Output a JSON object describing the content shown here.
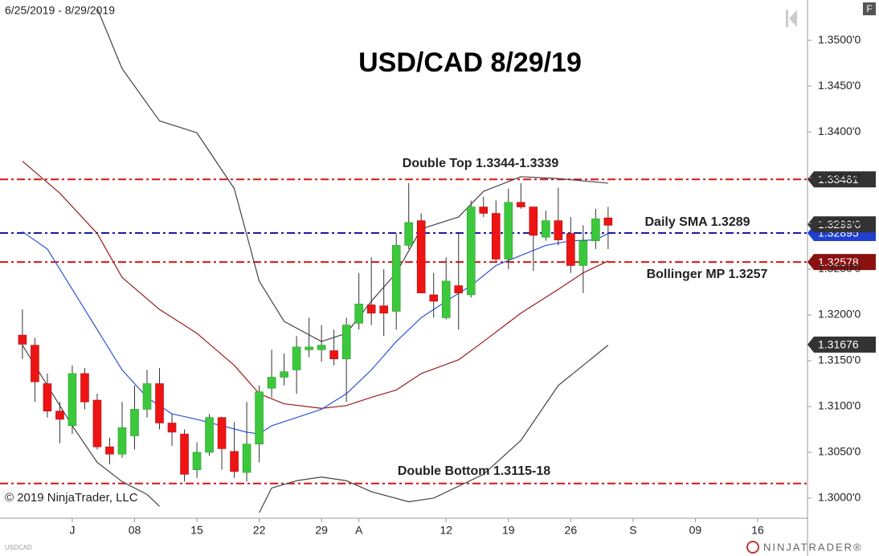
{
  "chart_data": {
    "type": "candlestick",
    "title": "USD/CAD 8/29/19",
    "subtitle": "6/25/2019 - 8/29/2019",
    "symbol": "USDCAD",
    "copyright": "© 2019 NinjaTrader, LLC",
    "brand": "NINJATRADER®",
    "corner_button": "F",
    "ylim": [
      1.2978,
      1.3544
    ],
    "yticks": [
      {
        "value": 1.3,
        "label": "1.3000'0"
      },
      {
        "value": 1.305,
        "label": "1.3050'0"
      },
      {
        "value": 1.31,
        "label": "1.3100'0"
      },
      {
        "value": 1.315,
        "label": "1.3150'0"
      },
      {
        "value": 1.32,
        "label": "1.3200'0"
      },
      {
        "value": 1.325,
        "label": "1.3250'0"
      },
      {
        "value": 1.33,
        "label": "1.3300'0"
      },
      {
        "value": 1.335,
        "label": "1.3350'0"
      },
      {
        "value": 1.34,
        "label": "1.3400'0"
      },
      {
        "value": 1.345,
        "label": "1.3450'0"
      },
      {
        "value": 1.35,
        "label": "1.3500'0"
      }
    ],
    "xlim": [
      -1.8,
      63
    ],
    "xticks": [
      {
        "value": 4,
        "label": "J"
      },
      {
        "value": 9,
        "label": "08"
      },
      {
        "value": 14,
        "label": "15"
      },
      {
        "value": 19,
        "label": "22"
      },
      {
        "value": 24,
        "label": "29"
      },
      {
        "value": 27,
        "label": "A"
      },
      {
        "value": 34,
        "label": "12"
      },
      {
        "value": 39,
        "label": "19"
      },
      {
        "value": 44,
        "label": "26"
      },
      {
        "value": 49,
        "label": "S"
      },
      {
        "value": 54,
        "label": "09"
      },
      {
        "value": 59,
        "label": "16"
      }
    ],
    "candles": {
      "up_color": "#3cc83c",
      "down_color": "#ee1414",
      "open": [
        1.3178,
        1.3167,
        1.3125,
        1.3095,
        1.3079,
        1.3136,
        1.3107,
        1.3056,
        1.3048,
        1.3068,
        1.3097,
        1.3125,
        1.3082,
        1.307,
        1.3031,
        1.305,
        1.3088,
        1.3051,
        1.3028,
        1.3059,
        1.312,
        1.3132,
        1.314,
        1.3162,
        1.3162,
        1.3161,
        1.3152,
        1.3191,
        1.3211,
        1.321,
        1.3204,
        1.3276,
        1.3303,
        1.3222,
        1.3197,
        1.3232,
        1.3222,
        1.3318,
        1.3311,
        1.3261,
        1.3323,
        1.3318,
        1.3285,
        1.3303,
        1.3289,
        1.3254,
        1.3281,
        1.3306
      ],
      "high": [
        1.3206,
        1.3175,
        1.3136,
        1.3105,
        1.3145,
        1.3142,
        1.3114,
        1.3066,
        1.3105,
        1.3123,
        1.314,
        1.3142,
        1.3092,
        1.3075,
        1.3061,
        1.3092,
        1.3089,
        1.3083,
        1.3105,
        1.3123,
        1.3162,
        1.3158,
        1.3177,
        1.3197,
        1.3189,
        1.3184,
        1.3197,
        1.3246,
        1.3263,
        1.325,
        1.3289,
        1.3344,
        1.3311,
        1.3246,
        1.3263,
        1.3289,
        1.3325,
        1.3329,
        1.3325,
        1.3338,
        1.3344,
        1.3318,
        1.3314,
        1.3339,
        1.3307,
        1.3298,
        1.3316,
        1.3318
      ],
      "low": [
        1.3152,
        1.3105,
        1.3088,
        1.306,
        1.307,
        1.3097,
        1.3053,
        1.3037,
        1.3044,
        1.3053,
        1.3088,
        1.3075,
        1.3057,
        1.3018,
        1.3022,
        1.3046,
        1.3031,
        1.3022,
        1.3018,
        1.3039,
        1.311,
        1.3123,
        1.3114,
        1.3154,
        1.3149,
        1.3145,
        1.3105,
        1.3184,
        1.3189,
        1.3177,
        1.3184,
        1.3272,
        1.3224,
        1.3197,
        1.3195,
        1.3184,
        1.3219,
        1.3307,
        1.3259,
        1.325,
        1.3316,
        1.3248,
        1.3281,
        1.3276,
        1.3246,
        1.3224,
        1.3272,
        1.3272
      ],
      "close": [
        1.3168,
        1.3127,
        1.3095,
        1.3086,
        1.3136,
        1.3105,
        1.3056,
        1.3048,
        1.3077,
        1.3097,
        1.3125,
        1.3082,
        1.3072,
        1.3026,
        1.305,
        1.3088,
        1.3054,
        1.3029,
        1.3059,
        1.3116,
        1.3132,
        1.3138,
        1.3165,
        1.3165,
        1.3167,
        1.3152,
        1.3189,
        1.3212,
        1.3202,
        1.3202,
        1.3276,
        1.3301,
        1.3224,
        1.3215,
        1.3237,
        1.3224,
        1.3318,
        1.3311,
        1.3261,
        1.3323,
        1.3318,
        1.3287,
        1.3303,
        1.3282,
        1.3254,
        1.3281,
        1.3305,
        1.3298
      ]
    },
    "lines": [
      {
        "color": "#444444",
        "x": [
          6,
          8,
          11,
          14,
          17,
          19,
          21,
          24,
          26,
          28,
          30,
          32,
          35,
          37,
          40,
          43,
          47
        ],
        "values": [
          1.3535,
          1.3469,
          1.3412,
          1.3399,
          1.3338,
          1.3237,
          1.3193,
          1.3171,
          1.318,
          1.3215,
          1.3246,
          1.3294,
          1.3307,
          1.3335,
          1.3351,
          1.3349,
          1.3344
        ]
      },
      {
        "color": "#444444",
        "x": [
          0,
          2,
          4,
          6,
          8,
          10,
          11,
          12,
          19,
          20,
          22,
          24,
          26,
          28,
          31,
          33,
          35,
          37,
          40,
          43,
          45,
          47
        ],
        "values": [
          1.3167,
          1.3123,
          1.3079,
          1.3039,
          1.3018,
          1.3004,
          1.2991,
          null,
          1.2984,
          1.3011,
          1.3019,
          1.3023,
          1.3019,
          1.3007,
          1.2996,
          1.3,
          1.3013,
          1.3026,
          1.3063,
          1.3123,
          1.3145,
          1.3167
        ]
      },
      {
        "color": "#9b1c1c",
        "x": [
          0,
          3,
          6,
          8,
          11,
          14,
          17,
          19,
          21,
          24,
          26,
          28,
          30,
          32,
          35,
          37,
          40,
          43,
          45,
          47
        ],
        "values": [
          1.3368,
          1.3333,
          1.3289,
          1.3241,
          1.3206,
          1.318,
          1.3145,
          1.3114,
          1.3103,
          1.3098,
          1.3101,
          1.311,
          1.3118,
          1.3136,
          1.3151,
          1.3171,
          1.3202,
          1.3228,
          1.3246,
          1.3259
        ]
      },
      {
        "color": "#2b55d8",
        "x": [
          0,
          2,
          4,
          6,
          8,
          10,
          12,
          14,
          16,
          18,
          19,
          20,
          22,
          24,
          26,
          28,
          30,
          32,
          34,
          36,
          38,
          40,
          42,
          44,
          46,
          47
        ],
        "values": [
          1.3291,
          1.3272,
          1.3228,
          1.3184,
          1.314,
          1.311,
          1.3092,
          1.3086,
          1.3079,
          1.3072,
          1.307,
          1.3079,
          1.3088,
          1.3097,
          1.3114,
          1.314,
          1.3171,
          1.3197,
          1.3215,
          1.3232,
          1.3254,
          1.3265,
          1.3276,
          1.3281,
          1.3282,
          1.3289
        ]
      }
    ],
    "hlines": [
      {
        "value": 1.33481,
        "color": "#e01010"
      },
      {
        "value": 1.32895,
        "color": "#1a1aa8"
      },
      {
        "value": 1.32578,
        "color": "#e01010"
      },
      {
        "value": 1.3016,
        "color": "#e01010"
      }
    ],
    "price_markers": [
      {
        "value": 1.33481,
        "color": "#333333"
      },
      {
        "value": 1.32895,
        "color": "#1f3fd0"
      },
      {
        "value": 1.3299,
        "label": "1.3299'0",
        "color": "#333333"
      },
      {
        "value": 1.32578,
        "color": "#8b1010"
      },
      {
        "value": 1.31676,
        "color": "#333333"
      }
    ],
    "annotations": [
      {
        "text": "Double Top 1.3344-1.3339"
      },
      {
        "text": "Daily SMA 1.3289"
      },
      {
        "text": "Bollinger MP 1.3257"
      },
      {
        "text": "Double Bottom 1.3115-18"
      }
    ]
  }
}
